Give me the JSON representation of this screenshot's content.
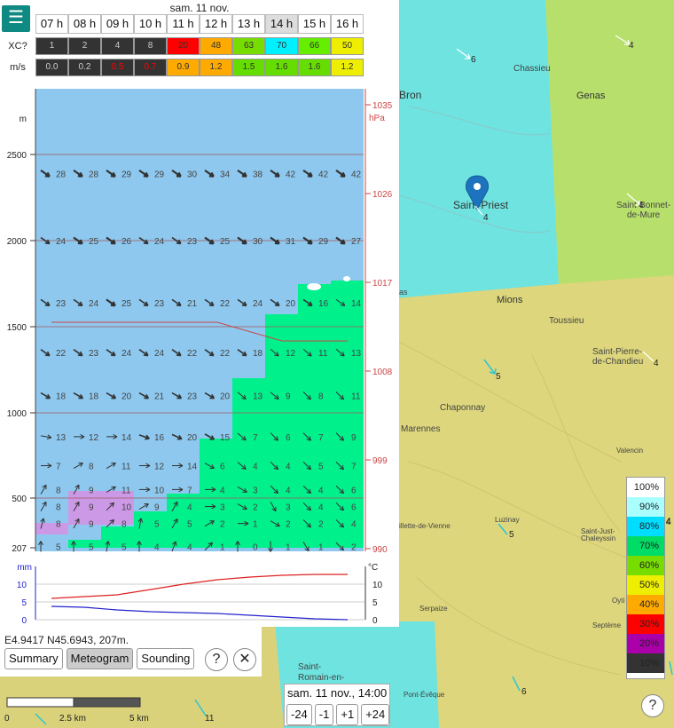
{
  "panel": {
    "date": "sam. 11 nov.",
    "hours": [
      "07 h",
      "08 h",
      "09 h",
      "10 h",
      "11 h",
      "12 h",
      "13 h",
      "14 h",
      "15 h",
      "16 h"
    ],
    "selected_hour_index": 7,
    "xc_label": "XC?",
    "xc_values": [
      "1",
      "2",
      "4",
      "8",
      "20",
      "48",
      "63",
      "70",
      "66",
      "50"
    ],
    "xc_colors": [
      "#333333",
      "#333333",
      "#333333",
      "#333333",
      "#ff0000",
      "#ffaa00",
      "#77dd00",
      "#00f0ff",
      "#66ee00",
      "#eeee00"
    ],
    "ms_label": "m/s",
    "ms_values": [
      "0.0",
      "0.2",
      "0.5",
      "0.7",
      "0.9",
      "1.2",
      "1.5",
      "1.6",
      "1.6",
      "1.2"
    ],
    "ms_colors": [
      "#333333",
      "#333333",
      "#333333",
      "#333333",
      "#ffaa00",
      "#ffaa00",
      "#66dd00",
      "#66dd00",
      "#66dd00",
      "#eeee00"
    ],
    "ms_text_colors": [
      "#cccccc",
      "#cccccc",
      "#ff0000",
      "#ff0000",
      "#333333",
      "#333333",
      "#333333",
      "#333333",
      "#333333",
      "#333333"
    ]
  },
  "meteogram": {
    "alt_unit": "m",
    "alt_ticks": [
      {
        "v": 2500,
        "label": "2500"
      },
      {
        "v": 2000,
        "label": "2000"
      },
      {
        "v": 1500,
        "label": "1500"
      },
      {
        "v": 1000,
        "label": "1000"
      },
      {
        "v": 500,
        "label": "500"
      },
      {
        "v": 207,
        "label": "207"
      }
    ],
    "pressure_unit": "hPa",
    "pressure_ticks": [
      "1035",
      "1026",
      "1017",
      "1008",
      "999",
      "990"
    ],
    "wind_rows": [
      {
        "alt": 2390,
        "speeds": [
          28,
          28,
          29,
          29,
          30,
          34,
          38,
          42,
          42,
          42
        ],
        "dirs": [
          35,
          35,
          35,
          35,
          35,
          35,
          35,
          35,
          35,
          35
        ]
      },
      {
        "alt": 2000,
        "speeds": [
          24,
          25,
          26,
          24,
          23,
          25,
          30,
          31,
          29,
          27
        ],
        "dirs": [
          35,
          35,
          35,
          35,
          35,
          35,
          35,
          35,
          35,
          35
        ]
      },
      {
        "alt": 1640,
        "speeds": [
          23,
          24,
          25,
          23,
          21,
          22,
          24,
          20,
          16,
          14
        ],
        "dirs": [
          35,
          35,
          35,
          35,
          35,
          35,
          35,
          35,
          35,
          35
        ]
      },
      {
        "alt": 1350,
        "speeds": [
          22,
          23,
          24,
          24,
          22,
          22,
          18,
          12,
          11,
          13
        ],
        "dirs": [
          35,
          35,
          35,
          35,
          35,
          35,
          35,
          40,
          40,
          40
        ]
      },
      {
        "alt": 1100,
        "speeds": [
          18,
          18,
          20,
          21,
          23,
          20,
          13,
          9,
          8,
          11
        ],
        "dirs": [
          30,
          30,
          30,
          30,
          30,
          30,
          40,
          40,
          45,
          45
        ]
      },
      {
        "alt": 860,
        "speeds": [
          13,
          12,
          14,
          16,
          20,
          15,
          7,
          6,
          7,
          9
        ],
        "dirs": [
          10,
          0,
          0,
          20,
          25,
          30,
          40,
          45,
          45,
          45
        ]
      },
      {
        "alt": 690,
        "speeds": [
          7,
          8,
          11,
          12,
          14,
          6,
          4,
          4,
          5,
          7
        ],
        "dirs": [
          0,
          -30,
          -30,
          0,
          0,
          30,
          40,
          45,
          45,
          45
        ]
      },
      {
        "alt": 550,
        "speeds": [
          8,
          9,
          11,
          10,
          7,
          4,
          3,
          4,
          4,
          6
        ],
        "dirs": [
          -60,
          -60,
          -30,
          0,
          0,
          0,
          30,
          45,
          45,
          45
        ]
      },
      {
        "alt": 450,
        "speeds": [
          8,
          9,
          10,
          9,
          4,
          3,
          2,
          3,
          4,
          6
        ],
        "dirs": [
          -60,
          -60,
          -45,
          -30,
          -60,
          0,
          30,
          60,
          45,
          45
        ]
      },
      {
        "alt": 350,
        "speeds": [
          8,
          9,
          8,
          5,
          5,
          2,
          1,
          2,
          2,
          4
        ],
        "dirs": [
          -75,
          -60,
          -45,
          -80,
          -60,
          -30,
          0,
          30,
          45,
          45
        ]
      },
      {
        "alt": 215,
        "speeds": [
          5,
          5,
          5,
          4,
          4,
          1,
          0,
          1,
          1,
          2
        ],
        "dirs": [
          -90,
          -90,
          -80,
          -90,
          -70,
          -45,
          -90,
          90,
          60,
          45
        ]
      }
    ],
    "precip_unit": "mm",
    "precip_ticks": [
      "10",
      "5",
      "0"
    ],
    "temp_unit": "°C",
    "temp_ticks": [
      "10",
      "5",
      "0"
    ]
  },
  "map": {
    "places": [
      {
        "name": "Bron",
        "big": true
      },
      {
        "name": "Chassieu",
        "big": false
      },
      {
        "name": "Genas",
        "big": true
      },
      {
        "name": "Saint-Priest",
        "big": true
      },
      {
        "name": "Saint-Bonnet-",
        "big": false
      },
      {
        "name": "de-Mure",
        "big": false
      },
      {
        "name": "Mions",
        "big": true
      },
      {
        "name": "Toussieu",
        "big": false
      },
      {
        "name": "Saint-Pierre-",
        "big": false
      },
      {
        "name": "de-Chandieu",
        "big": false
      },
      {
        "name": "Chaponnay",
        "big": false
      },
      {
        "name": "Marennes",
        "big": false
      },
      {
        "name": "Valencin",
        "big": false
      },
      {
        "name": "Saint-Just-",
        "big": false
      },
      {
        "name": "Chaleyssin",
        "big": false
      },
      {
        "name": "Serpaize",
        "big": false
      },
      {
        "name": "Septème",
        "big": false
      },
      {
        "name": "Pont-Évêque",
        "big": false
      },
      {
        "name": "Saint-",
        "big": false
      },
      {
        "name": "Romain-en-",
        "big": false
      },
      {
        "name": "illette-de-Vienne",
        "big": false
      },
      {
        "name": "as",
        "big": false
      },
      {
        "name": "Luzinay",
        "big": false
      },
      {
        "name": "Oyti",
        "big": false
      }
    ],
    "wind_labels": [
      "6",
      "4",
      "4",
      "4",
      "5",
      "4",
      "5",
      "6",
      "11",
      "4"
    ]
  },
  "legend": {
    "items": [
      "100%",
      "90%",
      "80%",
      "70%",
      "60%",
      "50%",
      "40%",
      "30%",
      "20%",
      "10%"
    ],
    "colors": [
      "#ffffff",
      "#aaffff",
      "#00ddff",
      "#00dd66",
      "#77dd00",
      "#eeee00",
      "#ffaa00",
      "#ff0000",
      "#aa00aa",
      "#333333"
    ],
    "side_value": "4"
  },
  "coord": {
    "text": "E4.9417 N45.6943, 207m.",
    "tabs": [
      "Summary",
      "Meteogram",
      "Sounding"
    ],
    "active_tab": 1,
    "help": "?",
    "close": "✕"
  },
  "timebox": {
    "time": "sam. 11 nov., 14:00",
    "steps": [
      "-24",
      "-1",
      "+1",
      "+24"
    ]
  },
  "scale": {
    "labels": [
      "0",
      "2.5 km",
      "5 km"
    ]
  },
  "help": "?",
  "menu": "☰"
}
